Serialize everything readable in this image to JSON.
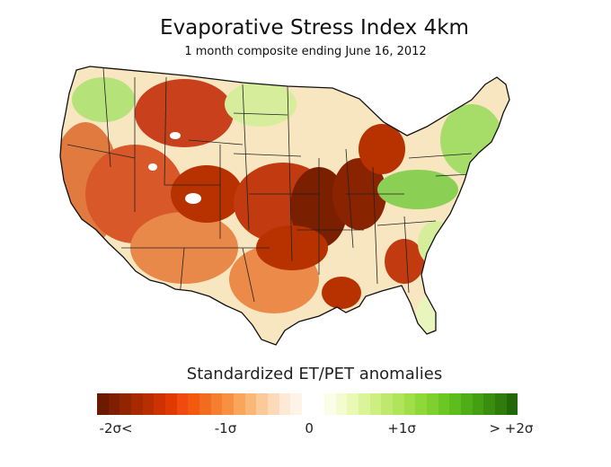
{
  "title": "Evaporative Stress Index 4km",
  "subtitle": "1 month composite ending June 16, 2012",
  "legend": {
    "title": "Standardized  ET/PET anomalies",
    "colors": [
      "#6b1a00",
      "#7d1f00",
      "#902500",
      "#a52a00",
      "#b82e00",
      "#cc3300",
      "#e13a00",
      "#ef4a10",
      "#f25a10",
      "#f26c20",
      "#f57e30",
      "#f79040",
      "#f9a55a",
      "#fab878",
      "#fbca98",
      "#fcdab8",
      "#fde9d5",
      "#fdf3e6",
      "#ffffff",
      "#ffffff",
      "#fbfde6",
      "#f3fbd0",
      "#e8f8b5",
      "#dbf49a",
      "#cdef82",
      "#bfe96e",
      "#b0e45b",
      "#a0df4a",
      "#8fd83a",
      "#7ed02e",
      "#6cc724",
      "#5cbd1c",
      "#4fae16",
      "#459f12",
      "#3a8d0f",
      "#2f7b0b",
      "#236808"
    ],
    "ticks": [
      {
        "label": "-2σ<",
        "pos": 0.045
      },
      {
        "label": "-1σ",
        "pos": 0.305
      },
      {
        "label": "0",
        "pos": 0.505
      },
      {
        "label": "+1σ",
        "pos": 0.725
      },
      {
        "label": "> +2σ",
        "pos": 0.985
      }
    ]
  },
  "map_colors": {
    "dry_severe": "#7a2000",
    "dry_strong": "#b83200",
    "dry": "#d94a1a",
    "dry_moderate": "#ec8a4a",
    "neutral": "#f8e6c0",
    "wet_mild": "#d6ee9c",
    "wet": "#8ccf55"
  }
}
